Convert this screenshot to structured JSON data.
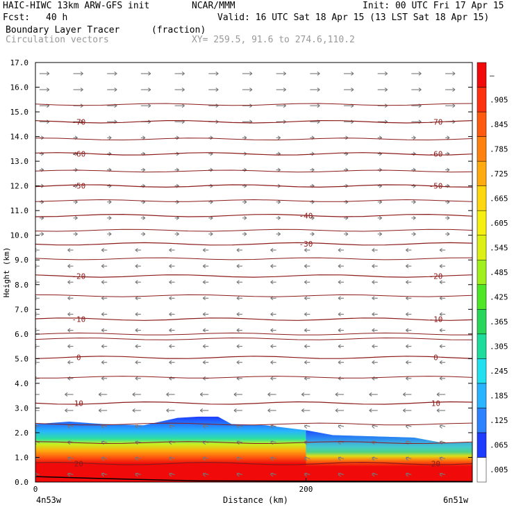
{
  "header": {
    "model_line": "HAIC-HIWC 13km ARW-GFS init",
    "org": "NCAR/MMM",
    "init": "Init: 00 UTC Fri 17 Apr 15",
    "fcst_label": "Fcst:",
    "fcst_value": "40 h",
    "valid": "Valid: 16 UTC Sat 18 Apr 15 (13 LST Sat 18 Apr 15)",
    "field_name": "Boundary Layer Tracer",
    "field_unit": "(fraction)",
    "vector_label": "Circulation vectors",
    "xy_label": "XY= 259.5, 91.6 to 274.6,110.2"
  },
  "chart_data": {
    "type": "heatmap",
    "xlabel": "Distance (km)",
    "ylabel": "Height (km)",
    "x_ticks": [
      "0",
      "200"
    ],
    "x_end_labels": {
      "left": "4n53w",
      "right": "6n51w"
    },
    "xlim": [
      0,
      323
    ],
    "ylim": [
      0,
      17
    ],
    "y_ticks": [
      "0.0",
      "1.0",
      "2.0",
      "3.0",
      "4.0",
      "5.0",
      "6.0",
      "7.0",
      "8.0",
      "9.0",
      "10.0",
      "11.0",
      "12.0",
      "13.0",
      "14.0",
      "15.0",
      "16.0",
      "17.0"
    ],
    "colorbar": {
      "labels": [
        ".005",
        ".065",
        ".125",
        ".185",
        ".245",
        ".305",
        ".365",
        ".425",
        ".485",
        ".545",
        ".605",
        ".665",
        ".725",
        ".785",
        ".845",
        ".905",
        "–"
      ],
      "colors": [
        "#ffffff",
        "#1e3cff",
        "#2d82ff",
        "#28b4ff",
        "#22e0f0",
        "#1edc9b",
        "#28d75a",
        "#50e628",
        "#a0f01e",
        "#dcf016",
        "#f5f012",
        "#ffd70f",
        "#ffaa0f",
        "#ff820f",
        "#ff5a0f",
        "#ff320f",
        "#f00a0a"
      ]
    },
    "boundary_layer_top_km": {
      "x": [
        0,
        25,
        50,
        80,
        105,
        120,
        135,
        145,
        170,
        200,
        220,
        250,
        280,
        300,
        323
      ],
      "y": [
        2.35,
        2.45,
        2.35,
        2.3,
        2.6,
        2.65,
        2.65,
        2.35,
        2.3,
        2.1,
        1.9,
        1.85,
        1.8,
        1.6,
        1.6
      ]
    },
    "temperature_contours": [
      {
        "value": -70,
        "y_km": 14.6,
        "labels": [
          "-70",
          "-70"
        ]
      },
      {
        "value": -60,
        "y_km": 13.3,
        "labels": [
          "-60",
          "-60"
        ]
      },
      {
        "value": -50,
        "y_km": 12.0,
        "labels": [
          "-50",
          "-50"
        ]
      },
      {
        "value": -40,
        "y_km": 10.8,
        "labels": [
          "-40"
        ]
      },
      {
        "value": -30,
        "y_km": 9.65,
        "labels": [
          "-30"
        ]
      },
      {
        "value": -20,
        "y_km": 8.35,
        "labels": [
          "-20",
          "-20"
        ]
      },
      {
        "value": -10,
        "y_km": 6.6,
        "labels": [
          "-10",
          "-10"
        ]
      },
      {
        "value": 0,
        "y_km": 5.05,
        "labels": [
          "0",
          "0"
        ]
      },
      {
        "value": 10,
        "y_km": 3.2,
        "labels": [
          "10",
          "10"
        ]
      },
      {
        "value": 20,
        "y_km": 0.75,
        "labels": [
          "20",
          "20"
        ]
      }
    ],
    "extra_contour_levels_km": [
      15.3,
      13.9,
      12.6,
      11.4,
      10.2,
      9.05,
      7.55,
      6.0,
      5.8,
      4.25,
      2.35,
      1.6
    ],
    "wind_vectors": {
      "upper": "westerly (left to right)",
      "lower": "easterly (right to left)",
      "transition_km": 9.5
    }
  }
}
